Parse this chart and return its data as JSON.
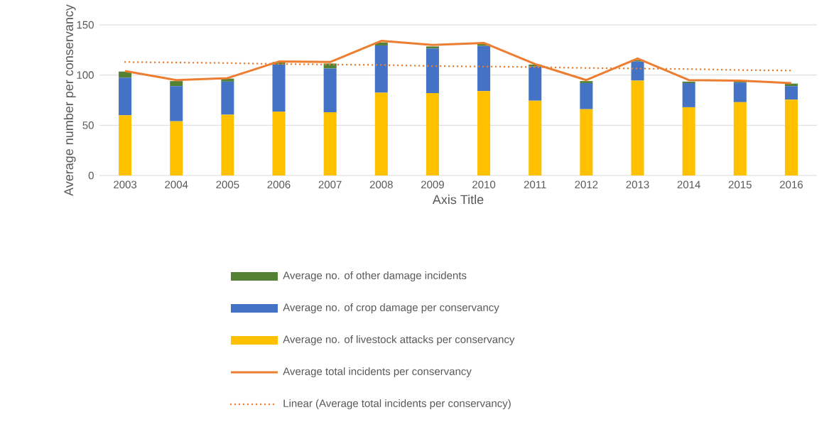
{
  "chart_data": {
    "type": "bar",
    "stacked": true,
    "xlabel": "Axis Title",
    "ylabel": "Average number per conservancy",
    "categories": [
      "2003",
      "2004",
      "2005",
      "2006",
      "2007",
      "2008",
      "2009",
      "2010",
      "2011",
      "2012",
      "2013",
      "2014",
      "2015",
      "2016"
    ],
    "ylim": [
      0,
      150
    ],
    "yticks": [
      0,
      50,
      100,
      150
    ],
    "grid": "y",
    "legend": "bottom",
    "series": [
      {
        "name": "Average no. of livestock attacks per conservancy",
        "color": "#ffc000",
        "values": [
          60,
          54,
          60.5,
          63.5,
          63,
          82.5,
          82,
          84,
          74.5,
          66,
          94.5,
          68,
          73,
          75.5
        ]
      },
      {
        "name": "Average no. of crop damage per conservancy",
        "color": "#4472c4",
        "values": [
          37.5,
          35,
          33,
          47,
          43.5,
          47,
          44.5,
          45,
          34,
          26,
          19,
          24,
          19.5,
          13.5
        ]
      },
      {
        "name": "Average no. of other damage incidents",
        "color": "#548235",
        "values": [
          6,
          5,
          3,
          2.5,
          5,
          3,
          2,
          2,
          2,
          2,
          1.5,
          1.5,
          1,
          2.5
        ]
      },
      {
        "type": "line",
        "name": "Average total incidents per conservancy",
        "color": "#ed7d31",
        "values": [
          104,
          95,
          97,
          113.5,
          113,
          134,
          130,
          132,
          111,
          95,
          116.5,
          95,
          94.5,
          92
        ]
      },
      {
        "type": "line",
        "name": "Linear (Average total incidents per conservancy)",
        "color": "#ed7d31",
        "line_style": "dotted",
        "values": [
          113,
          112.5,
          112,
          111,
          110.5,
          110,
          109,
          108.5,
          108,
          107,
          106.5,
          106,
          105,
          104.5
        ]
      }
    ]
  }
}
